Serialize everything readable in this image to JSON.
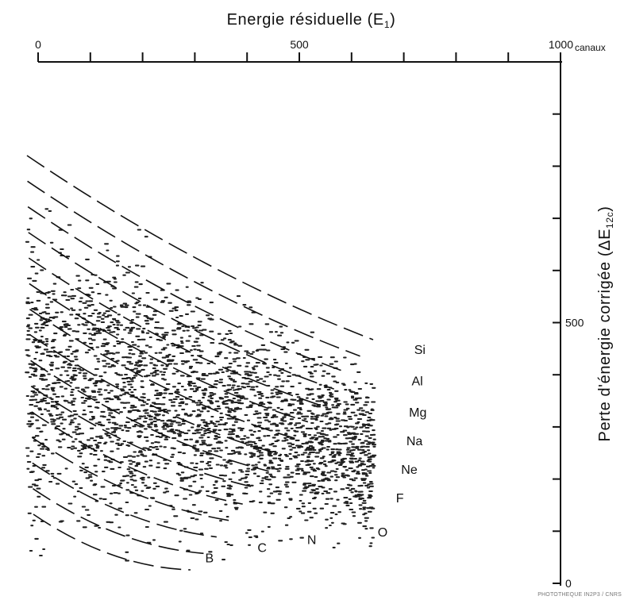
{
  "chart_data": {
    "type": "scatter",
    "xlabel": "Energie résiduelle (E",
    "xlabel_sub": "1",
    "xlabel_close": ")",
    "ylabel": "Perte d'énergie corrigée (ΔE",
    "ylabel_sub": "12c",
    "ylabel_close": ")",
    "xlim": [
      0,
      1000
    ],
    "ylim": [
      0,
      1000
    ],
    "x_ticks": [
      {
        "value": 0,
        "label": "0"
      },
      {
        "value": 100,
        "label": ""
      },
      {
        "value": 200,
        "label": ""
      },
      {
        "value": 300,
        "label": ""
      },
      {
        "value": 400,
        "label": ""
      },
      {
        "value": 500,
        "label": "500"
      },
      {
        "value": 600,
        "label": ""
      },
      {
        "value": 700,
        "label": ""
      },
      {
        "value": 800,
        "label": ""
      },
      {
        "value": 900,
        "label": ""
      },
      {
        "value": 1000,
        "label": "1000"
      }
    ],
    "x_unit": "canaux",
    "y_ticks": [
      {
        "value": 0,
        "label": "0"
      },
      {
        "value": 100,
        "label": ""
      },
      {
        "value": 200,
        "label": ""
      },
      {
        "value": 300,
        "label": ""
      },
      {
        "value": 400,
        "label": ""
      },
      {
        "value": 500,
        "label": "500"
      },
      {
        "value": 600,
        "label": ""
      },
      {
        "value": 700,
        "label": ""
      },
      {
        "value": 800,
        "label": ""
      },
      {
        "value": 900,
        "label": ""
      }
    ],
    "elements": [
      {
        "name": "Si",
        "x": 720,
        "y": 440
      },
      {
        "name": "Al",
        "x": 715,
        "y": 380
      },
      {
        "name": "Mg",
        "x": 710,
        "y": 320
      },
      {
        "name": "Na",
        "x": 705,
        "y": 265
      },
      {
        "name": "Ne",
        "x": 695,
        "y": 210
      },
      {
        "name": "F",
        "x": 685,
        "y": 155
      },
      {
        "name": "O",
        "x": 650,
        "y": 90
      },
      {
        "name": "N",
        "x": 515,
        "y": 75
      },
      {
        "name": "C",
        "x": 420,
        "y": 60
      },
      {
        "name": "B",
        "x": 320,
        "y": 40
      }
    ],
    "credit": "PHOTOTHEQUE IN2P3 / CNRS"
  }
}
